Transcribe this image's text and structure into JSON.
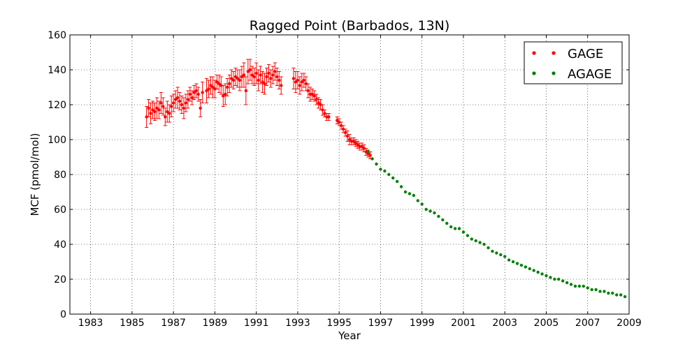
{
  "chart_data": {
    "type": "scatter",
    "title": "Ragged Point (Barbados, 13N)",
    "xlabel": "Year",
    "ylabel": "MCF (pmol/mol)",
    "xlim": [
      1982,
      2009
    ],
    "ylim": [
      0,
      160
    ],
    "xticks": [
      1983,
      1985,
      1987,
      1989,
      1991,
      1993,
      1995,
      1997,
      1999,
      2001,
      2003,
      2005,
      2007,
      2009
    ],
    "yticks": [
      0,
      20,
      40,
      60,
      80,
      100,
      120,
      140,
      160
    ],
    "grid": true,
    "legend_position": "top-right",
    "series": [
      {
        "name": "GAGE",
        "color": "#ff0000",
        "error_bars": true,
        "x": [
          1985.7,
          1985.8,
          1985.9,
          1986.0,
          1986.1,
          1986.2,
          1986.3,
          1986.4,
          1986.5,
          1986.6,
          1986.7,
          1986.8,
          1986.9,
          1987.0,
          1987.1,
          1987.2,
          1987.3,
          1987.4,
          1987.5,
          1987.6,
          1987.7,
          1987.8,
          1987.9,
          1988.0,
          1988.1,
          1988.2,
          1988.3,
          1988.4,
          1988.6,
          1988.7,
          1988.8,
          1988.9,
          1989.0,
          1989.1,
          1989.2,
          1989.3,
          1989.4,
          1989.5,
          1989.6,
          1989.7,
          1989.8,
          1989.9,
          1990.0,
          1990.1,
          1990.2,
          1990.3,
          1990.4,
          1990.5,
          1990.6,
          1990.7,
          1990.8,
          1990.9,
          1991.0,
          1991.1,
          1991.2,
          1991.3,
          1991.4,
          1991.5,
          1991.6,
          1991.7,
          1991.8,
          1991.9,
          1992.0,
          1992.1,
          1992.2,
          1992.8,
          1992.9,
          1993.0,
          1993.1,
          1993.2,
          1993.3,
          1993.4,
          1993.5,
          1993.6,
          1993.7,
          1993.8,
          1993.9,
          1994.0,
          1994.1,
          1994.2,
          1994.3,
          1994.4,
          1994.5,
          1994.9,
          1995.0,
          1995.1,
          1995.2,
          1995.3,
          1995.4,
          1995.5,
          1995.6,
          1995.7,
          1995.8,
          1995.9,
          1996.0,
          1996.1,
          1996.2,
          1996.3,
          1996.4,
          1996.5
        ],
        "y": [
          113,
          118,
          115,
          117,
          116,
          118,
          117,
          121,
          119,
          113,
          116,
          115,
          119,
          121,
          123,
          124,
          122,
          120,
          118,
          121,
          123,
          126,
          124,
          127,
          128,
          126,
          118,
          127,
          128,
          129,
          131,
          130,
          129,
          133,
          132,
          131,
          125,
          126,
          130,
          132,
          135,
          134,
          136,
          135,
          134,
          136,
          137,
          128,
          139,
          140,
          137,
          136,
          138,
          134,
          137,
          133,
          132,
          136,
          138,
          135,
          137,
          139,
          136,
          134,
          131,
          135,
          133,
          134,
          131,
          133,
          134,
          132,
          128,
          126,
          126,
          125,
          123,
          121,
          120,
          117,
          115,
          113,
          113,
          111,
          110,
          108,
          106,
          104,
          102,
          100,
          99,
          99,
          98,
          97,
          96,
          96,
          95,
          93,
          92,
          91
        ],
        "y_err": [
          6,
          5,
          6,
          5,
          5,
          6,
          5,
          6,
          5,
          5,
          6,
          5,
          6,
          5,
          5,
          6,
          5,
          5,
          6,
          5,
          5,
          4,
          4,
          4,
          4,
          4,
          5,
          6,
          7,
          5,
          5,
          6,
          5,
          4,
          5,
          5,
          6,
          6,
          5,
          5,
          5,
          5,
          5,
          5,
          6,
          6,
          7,
          8,
          7,
          6,
          5,
          5,
          6,
          6,
          5,
          6,
          6,
          5,
          5,
          5,
          5,
          5,
          5,
          5,
          5,
          6,
          6,
          5,
          5,
          5,
          4,
          4,
          4,
          4,
          3,
          3,
          3,
          3,
          3,
          3,
          2,
          2,
          2,
          2,
          2,
          2,
          2,
          2,
          3,
          3,
          2,
          2,
          2,
          2,
          2,
          2,
          2,
          2,
          2,
          2
        ]
      },
      {
        "name": "AGAGE",
        "color": "#008000",
        "error_bars": false,
        "x": [
          1996.4,
          1996.6,
          1996.8,
          1997.0,
          1997.2,
          1997.4,
          1997.6,
          1997.8,
          1998.0,
          1998.2,
          1998.4,
          1998.6,
          1998.8,
          1999.0,
          1999.2,
          1999.4,
          1999.6,
          1999.8,
          2000.0,
          2000.2,
          2000.4,
          2000.6,
          2000.8,
          2001.0,
          2001.2,
          2001.4,
          2001.6,
          2001.8,
          2002.0,
          2002.2,
          2002.4,
          2002.6,
          2002.8,
          2003.0,
          2003.2,
          2003.4,
          2003.6,
          2003.8,
          2004.0,
          2004.2,
          2004.4,
          2004.6,
          2004.8,
          2005.0,
          2005.2,
          2005.4,
          2005.6,
          2005.8,
          2006.0,
          2006.2,
          2006.4,
          2006.6,
          2006.8,
          2007.0,
          2007.2,
          2007.4,
          2007.6,
          2007.8,
          2008.0,
          2008.2,
          2008.4,
          2008.6,
          2008.8
        ],
        "y": [
          93,
          89,
          86,
          83,
          82,
          80,
          78,
          76,
          73,
          70,
          69,
          68,
          65,
          63,
          60,
          59,
          58,
          56,
          54,
          52,
          50,
          49,
          49,
          47,
          45,
          43,
          42,
          41,
          40,
          38,
          36,
          35,
          34,
          33,
          31,
          30,
          29,
          28,
          27,
          26,
          25,
          24,
          23,
          22,
          21,
          20,
          20,
          19,
          18,
          17,
          16,
          16,
          16,
          15,
          14,
          14,
          13,
          13,
          12,
          12,
          11,
          11,
          10
        ]
      }
    ]
  }
}
